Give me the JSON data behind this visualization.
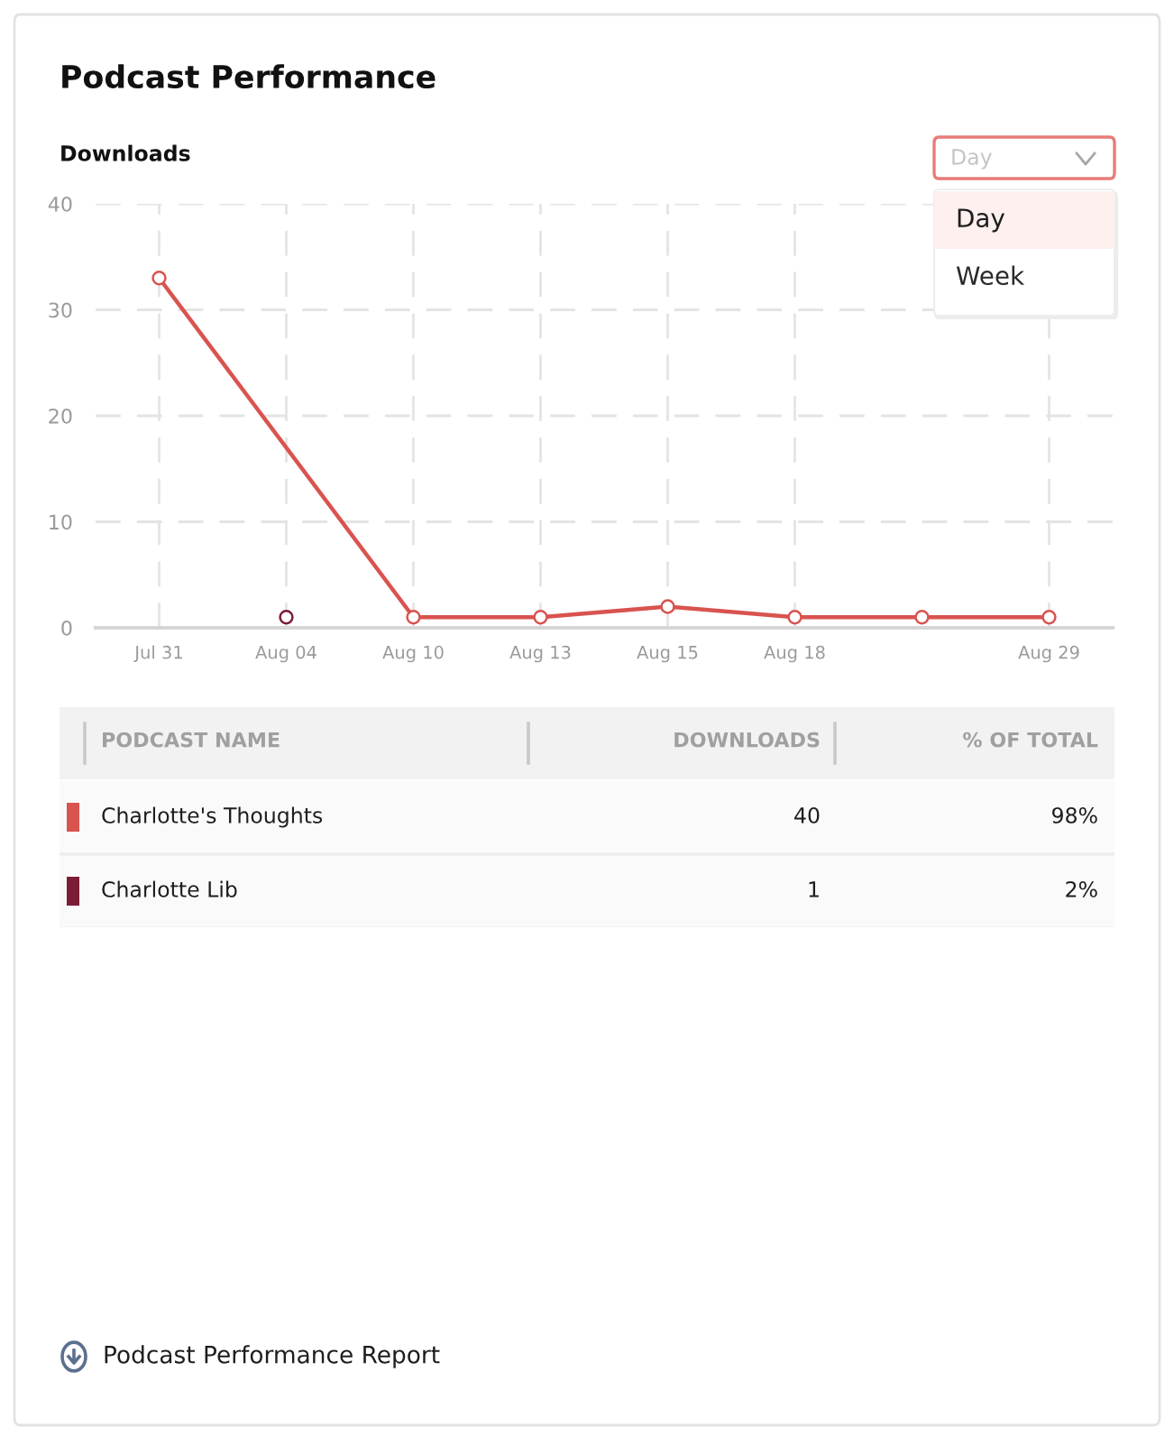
{
  "chart_data": [
    {
      "type": "line",
      "title": "Podcast Performance",
      "ylabel": "Downloads",
      "categories": [
        "Jul 31",
        "Aug 04",
        "Aug 10",
        "Aug 13",
        "Aug 15",
        "Aug 18",
        null,
        "Aug 29"
      ],
      "series": [
        {
          "color": "#d9534f",
          "values": [
            33,
            null,
            1,
            1,
            2,
            1,
            1,
            1
          ]
        },
        {
          "color": "#7b1d36",
          "values": [
            null,
            1,
            null,
            null,
            null,
            null,
            null,
            null
          ]
        }
      ],
      "ylim": [
        0,
        40
      ],
      "yticks": [
        0,
        10,
        20,
        30,
        40
      ],
      "grid": true,
      "marker": "circle",
      "line_style": "solid",
      "annotations": [
        "Day",
        "Day",
        "Week"
      ]
    },
    {
      "type": "other",
      "xlabel": "PODCAST NAME",
      "categories": [
        "Charlotte's Thoughts",
        "Charlotte Lib"
      ],
      "colors": [
        "#d9534f",
        "#7b1d36"
      ],
      "series": [
        {
          "values": [
            40,
            1
          ]
        },
        {
          "values": [
            98,
            2
          ],
          "value_labels": [
            "98%",
            "2%"
          ]
        }
      ],
      "data_labels": true,
      "annotations": [
        "DOWNLOADS",
        "% OF TOTAL",
        "Podcast Performance Report"
      ]
    }
  ]
}
